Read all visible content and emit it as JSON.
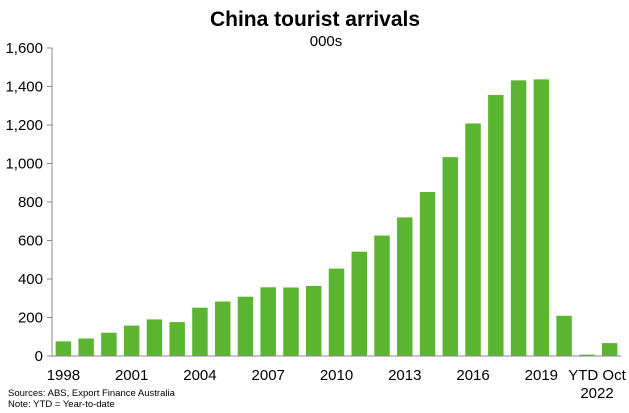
{
  "chart_data": {
    "type": "bar",
    "title": "China tourist arrivals",
    "subtitle": "000s",
    "categories": [
      "1998",
      "1999",
      "2000",
      "2001",
      "2002",
      "2003",
      "2004",
      "2005",
      "2006",
      "2007",
      "2008",
      "2009",
      "2010",
      "2011",
      "2012",
      "2013",
      "2014",
      "2015",
      "2016",
      "2017",
      "2018",
      "2019",
      "2020",
      "2021",
      "YTD Oct 2022"
    ],
    "tick_labels": [
      {
        "text": "1998",
        "index": 0
      },
      {
        "text": "2001",
        "index": 3
      },
      {
        "text": "2004",
        "index": 6
      },
      {
        "text": "2007",
        "index": 9
      },
      {
        "text": "2010",
        "index": 12
      },
      {
        "text": "2013",
        "index": 15
      },
      {
        "text": "2016",
        "index": 18
      },
      {
        "text": "2019",
        "index": 21
      },
      {
        "text": "YTD Oct\n2022",
        "index": 24
      }
    ],
    "values": [
      76,
      91,
      121,
      158,
      190,
      176,
      251,
      283,
      308,
      357,
      356,
      364,
      454,
      542,
      626,
      720,
      852,
      1033,
      1208,
      1356,
      1432,
      1437,
      209,
      7,
      67
    ],
    "ylim": [
      0,
      1600
    ],
    "yticks": [
      0,
      200,
      400,
      600,
      800,
      1000,
      1200,
      1400,
      1600
    ],
    "ytick_labels": [
      "0",
      "200",
      "400",
      "600",
      "800",
      "1,000",
      "1,200",
      "1,400",
      "1,600"
    ],
    "xlabel": "",
    "ylabel": "",
    "grid": false,
    "legend": "none",
    "bar_color": "#5cb531",
    "notes": [
      "Sources: ABS, Export Finance Australia",
      "Note: YTD = Year-to-date"
    ]
  }
}
